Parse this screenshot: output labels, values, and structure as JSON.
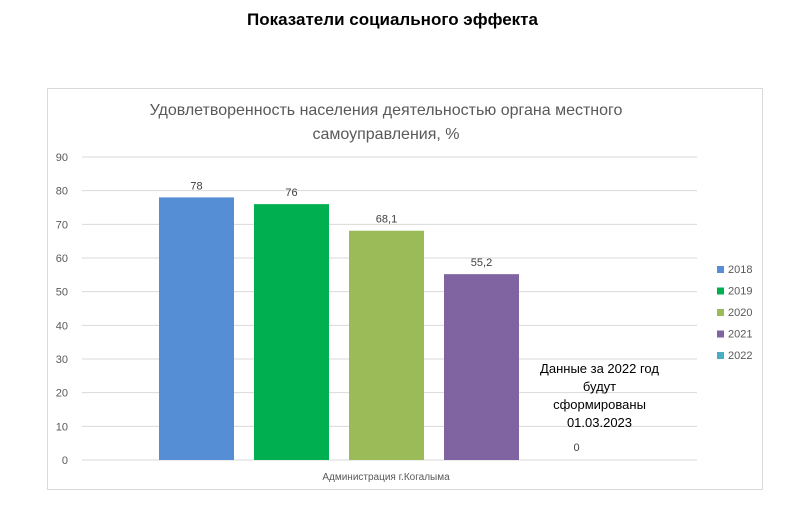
{
  "page_title": "Показатели социального эффекта",
  "chart_data": {
    "type": "bar",
    "title": "Удовлетворенность населения деятельностью органа местного самоуправления, %",
    "title_lines": [
      "Удовлетворенность населения деятельностью органа местного",
      "самоуправления, %"
    ],
    "categories": [
      "Администрация г.Когалыма"
    ],
    "series": [
      {
        "name": "2018",
        "values": [
          78
        ],
        "label": "78",
        "color": "#558ed5"
      },
      {
        "name": "2019",
        "values": [
          76
        ],
        "label": "76",
        "color": "#00b050"
      },
      {
        "name": "2020",
        "values": [
          68.1
        ],
        "label": "68,1",
        "color": "#9bbb59"
      },
      {
        "name": "2021",
        "values": [
          55.2
        ],
        "label": "55,2",
        "color": "#8064a2"
      },
      {
        "name": "2022",
        "values": [
          0
        ],
        "label": "0",
        "color": "#4bacc6"
      }
    ],
    "yticks": [
      "0",
      "10",
      "20",
      "30",
      "40",
      "50",
      "60",
      "70",
      "80",
      "90"
    ],
    "ylim": [
      0,
      90
    ],
    "grid": true,
    "legend_position": "right",
    "annotation": "Данные за 2022 год будут сформированы 01.03.2023",
    "annotation_lines": [
      "Данные за 2022 год",
      "будут",
      "сформированы",
      "01.03.2023"
    ]
  }
}
